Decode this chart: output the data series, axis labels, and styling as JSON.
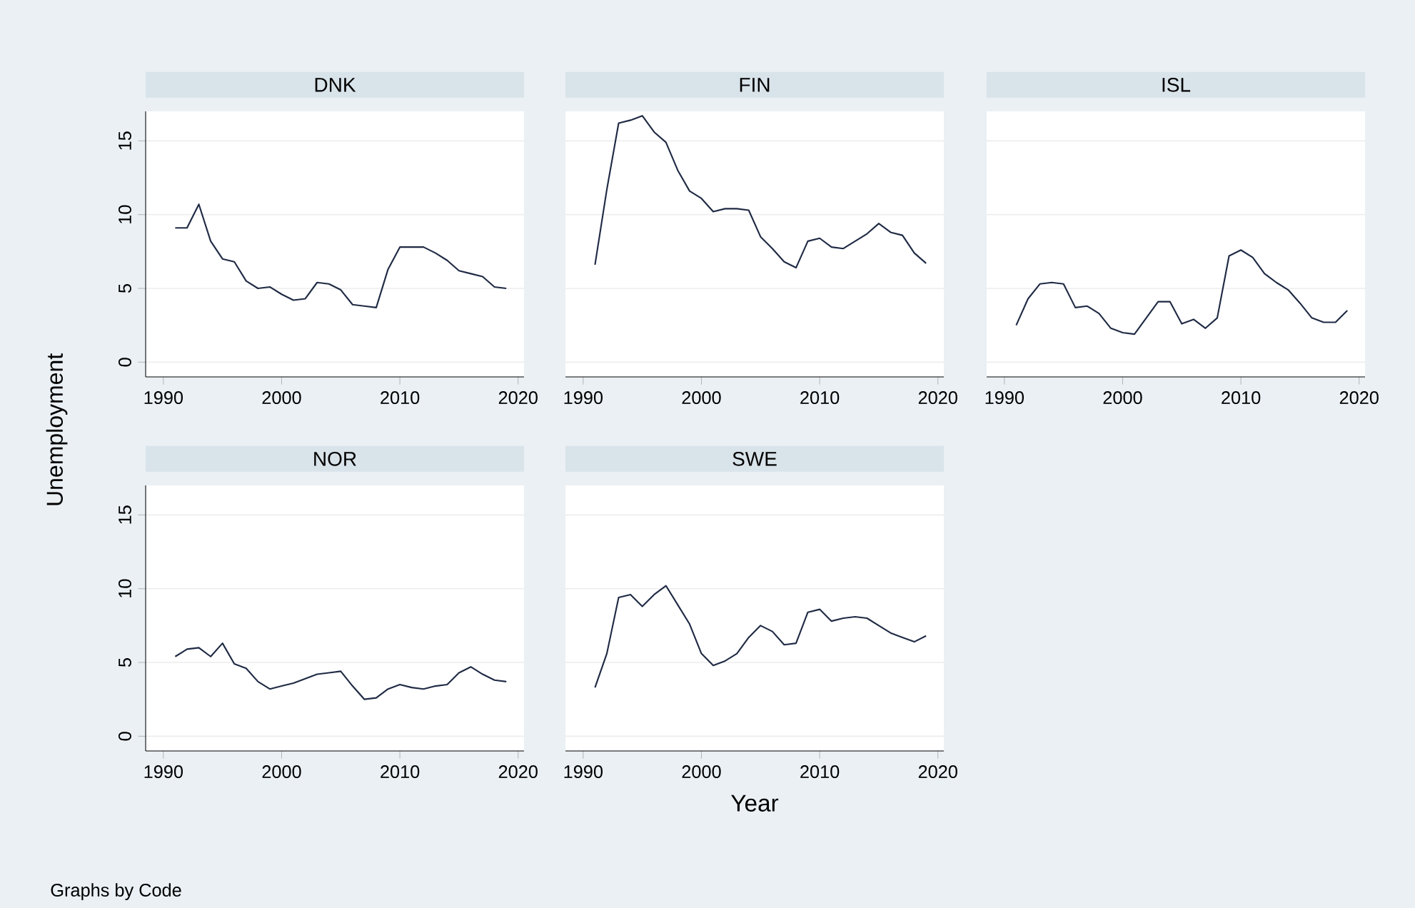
{
  "chart_data": [
    {
      "type": "line",
      "title": "DNK",
      "ylabel": "Unemployment",
      "color": "#1f2a44",
      "grid": "y",
      "x": [
        1991,
        1992,
        1993,
        1994,
        1995,
        1996,
        1997,
        1998,
        1999,
        2000,
        2001,
        2002,
        2003,
        2004,
        2005,
        2006,
        2007,
        2008,
        2009,
        2010,
        2011,
        2012,
        2013,
        2014,
        2015,
        2016,
        2017,
        2018,
        2019
      ],
      "values": [
        9.1,
        9.1,
        10.7,
        8.2,
        7.0,
        6.8,
        5.5,
        5.0,
        5.1,
        4.6,
        4.2,
        4.3,
        5.4,
        5.3,
        4.9,
        3.9,
        3.8,
        3.7,
        6.3,
        7.8,
        7.8,
        7.8,
        7.4,
        6.9,
        6.2,
        6.0,
        5.8,
        5.1,
        5.0
      ],
      "xlim": [
        1988.5,
        2020.5
      ],
      "ylim": [
        -1,
        17
      ],
      "xticks": [
        1990,
        2000,
        2010,
        2020
      ],
      "yticks": [
        0,
        5,
        10,
        15
      ]
    },
    {
      "type": "line",
      "title": "FIN",
      "color": "#1f2a44",
      "grid": "y",
      "tick_labels": "x",
      "x": [
        1991,
        1992,
        1993,
        1994,
        1995,
        1996,
        1997,
        1998,
        1999,
        2000,
        2001,
        2002,
        2003,
        2004,
        2005,
        2006,
        2007,
        2008,
        2009,
        2010,
        2011,
        2012,
        2013,
        2014,
        2015,
        2016,
        2017,
        2018,
        2019
      ],
      "values": [
        6.6,
        11.7,
        16.2,
        16.4,
        16.7,
        15.6,
        14.9,
        13.0,
        11.6,
        11.1,
        10.2,
        10.4,
        10.4,
        10.3,
        8.5,
        7.7,
        6.8,
        6.4,
        8.2,
        8.4,
        7.8,
        7.7,
        8.2,
        8.7,
        9.4,
        8.8,
        8.6,
        7.4,
        6.7
      ],
      "xlim": [
        1988.5,
        2020.5
      ],
      "ylim": [
        -1,
        17
      ],
      "xticks": [
        1990,
        2000,
        2010,
        2020
      ],
      "yticks": [
        0,
        5,
        10,
        15
      ]
    },
    {
      "type": "line",
      "title": "ISL",
      "color": "#1f2a44",
      "grid": "y",
      "tick_labels": "x",
      "x": [
        1991,
        1992,
        1993,
        1994,
        1995,
        1996,
        1997,
        1998,
        1999,
        2000,
        2001,
        2002,
        2003,
        2004,
        2005,
        2006,
        2007,
        2008,
        2009,
        2010,
        2011,
        2012,
        2013,
        2014,
        2015,
        2016,
        2017,
        2018,
        2019
      ],
      "values": [
        2.5,
        4.3,
        5.3,
        5.4,
        5.3,
        3.7,
        3.8,
        3.3,
        2.3,
        2.0,
        1.9,
        3.0,
        4.1,
        4.1,
        2.6,
        2.9,
        2.3,
        3.0,
        7.2,
        7.6,
        7.1,
        6.0,
        5.4,
        4.9,
        4.0,
        3.0,
        2.7,
        2.7,
        3.5
      ],
      "xlim": [
        1988.5,
        2020.5
      ],
      "ylim": [
        -1,
        17
      ],
      "xticks": [
        1990,
        2000,
        2010,
        2020
      ],
      "yticks": [
        0,
        5,
        10,
        15
      ]
    },
    {
      "type": "line",
      "title": "NOR",
      "color": "#1f2a44",
      "grid": "y",
      "annotations": [
        "Graphs by Code"
      ],
      "x": [
        1991,
        1992,
        1993,
        1994,
        1995,
        1996,
        1997,
        1998,
        1999,
        2000,
        2001,
        2002,
        2003,
        2004,
        2005,
        2006,
        2007,
        2008,
        2009,
        2010,
        2011,
        2012,
        2013,
        2014,
        2015,
        2016,
        2017,
        2018,
        2019
      ],
      "values": [
        5.4,
        5.9,
        6.0,
        5.4,
        6.3,
        4.9,
        4.6,
        3.7,
        3.2,
        3.4,
        3.6,
        3.9,
        4.2,
        4.3,
        4.4,
        3.4,
        2.5,
        2.6,
        3.2,
        3.5,
        3.3,
        3.2,
        3.4,
        3.5,
        4.3,
        4.7,
        4.2,
        3.8,
        3.7
      ],
      "xlim": [
        1988.5,
        2020.5
      ],
      "ylim": [
        -1,
        17
      ],
      "xticks": [
        1990,
        2000,
        2010,
        2020
      ],
      "yticks": [
        0,
        5,
        10,
        15
      ]
    },
    {
      "type": "line",
      "title": "SWE",
      "xlabel": "Year",
      "color": "#1f2a44",
      "grid": "y",
      "tick_labels": "x",
      "x": [
        1991,
        1992,
        1993,
        1994,
        1995,
        1996,
        1997,
        1998,
        1999,
        2000,
        2001,
        2002,
        2003,
        2004,
        2005,
        2006,
        2007,
        2008,
        2009,
        2010,
        2011,
        2012,
        2013,
        2014,
        2015,
        2016,
        2017,
        2018,
        2019
      ],
      "values": [
        3.3,
        5.6,
        9.4,
        9.6,
        8.8,
        9.6,
        10.2,
        8.9,
        7.6,
        5.6,
        4.8,
        5.1,
        5.6,
        6.7,
        7.5,
        7.1,
        6.2,
        6.3,
        8.4,
        8.6,
        7.8,
        8.0,
        8.1,
        8.0,
        7.5,
        7.0,
        6.7,
        6.4,
        6.8
      ],
      "xlim": [
        1988.5,
        2020.5
      ],
      "ylim": [
        -1,
        17
      ],
      "xticks": [
        1990,
        2000,
        2010,
        2020
      ],
      "yticks": [
        0,
        5,
        10,
        15
      ]
    }
  ]
}
